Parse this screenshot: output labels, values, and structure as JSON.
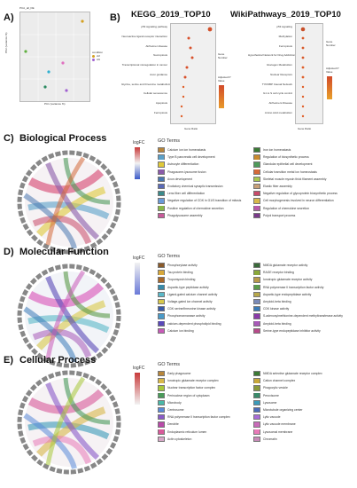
{
  "panels": {
    "A": {
      "letter": "A)",
      "title": "PCA_all_DE",
      "xlabel": "PC1 (variance %)",
      "ylabel": "PC2 (variance %)",
      "legend_title": "condition",
      "legend_items": [
        "ctrl",
        "Aß"
      ]
    },
    "B": {
      "letter": "B)",
      "kegg_title": "KEGG_2019_TOP10",
      "wiki_title": "WikiPathways_2019_TOP10",
      "kegg_terms": [
        "p53 signaling pathway",
        "Neuroactive ligand-receptor interaction",
        "Alzheimer disease",
        "Necroptosis",
        "Transcriptional misregulation in cancer",
        "Axon guidance",
        "Glycine, serine and threonine metabolism",
        "Cellular senescence",
        "Apoptosis",
        "Ferroptosis"
      ],
      "wiki_terms": [
        "p53 signaling",
        "Methylation",
        "Ferroptosis",
        "Hypothetical Network for Drug Addiction",
        "Glucagon Metabolism",
        "Nuclear Receptors",
        "TYROBP Causal Network",
        "G1 to S cell cycle control",
        "Alzheimers Disease",
        "Amino Acid metabolism"
      ],
      "x_axis": "Gene Ratio",
      "size_legend": "Gene Number",
      "color_legend": "Adjusted P Value"
    },
    "C": {
      "letter": "C)",
      "title": "Biological Process",
      "logfc": "logFC",
      "legend_title": "GO Terms",
      "terms": [
        "Calcium ion ion homeostasis",
        "Iron ion homeostasis",
        "Type B pancreatic cell development",
        "Regulation of biosynthetic process",
        "Astrocyte differentiation",
        "Glandular epithelial cell development",
        "Phagosome-lysosome fusion",
        "Cellular transition metal ion homeostasis",
        "Axon development",
        "Skeletal muscle myosin thick filament assembly",
        "Excitatory chemical synaptic transmission",
        "Elastic fiber assembly",
        "Lens fiber cell differentiation",
        "Negative regulation of glycoprotein biosynthetic process",
        "Negative regulation of CDK in G1/S transition of mitosis",
        "Cell morphogenesis involved in neuron differentiation",
        "Positive regulation of chemokine secretion",
        "Regulation of chemokine secretion",
        "Phagolysosome assembly",
        "Polyol transport process"
      ],
      "colors": [
        "#b8863a",
        "#3a7a34",
        "#5aa0c8",
        "#c98a2d",
        "#e0c93a",
        "#4e9a5a",
        "#8a5aa8",
        "#d46a3a",
        "#4a78b0",
        "#a8c850",
        "#5a6ab8",
        "#c8a078",
        "#3a8a8a",
        "#c84a6a",
        "#6a9ad8",
        "#d8b84a",
        "#8ab84a",
        "#b85aa8",
        "#c85a9a",
        "#7a3a8a"
      ]
    },
    "D": {
      "letter": "D)",
      "title": "Molecular Function",
      "logfc": "logFC",
      "legend_title": "GO Terms",
      "terms": [
        "Phosphorylase activity",
        "NMDA glutamate receptor activity",
        "Tau protein binding",
        "RAGE receptor binding",
        "Tropomyosin binding",
        "Ionotropic glutamate receptor activity",
        "Aspartic-type peptidase activity",
        "RNA polymerase II transcription factor activity",
        "Ligand-gated calcium channel activity",
        "Aspartic-type endopeptidase activity",
        "Voltage-gated ion channel activity",
        "Amyloid-beta binding",
        "CDK serine/threonine kinase activity",
        "CDK kinase activity",
        "Phosphomannanase activity",
        "S-adenosylmethionine-dependent methyltransferase activity",
        "calcium-dependent phospholipid binding",
        "Amyloid-beta binding",
        "Calcium ion binding",
        "Serine-type endopeptidase inhibitor activity"
      ],
      "colors": [
        "#8a5a2a",
        "#3a6a3a",
        "#d8a83a",
        "#8aa83a",
        "#a8682a",
        "#b89a4a",
        "#3a8aa8",
        "#5a9a4a",
        "#5ab8c8",
        "#b8a84a",
        "#d8c84a",
        "#7a8ab8",
        "#3a5aa8",
        "#3a7ab8",
        "#4a9ac8",
        "#8a3aa8",
        "#5a4ab8",
        "#a85ab8",
        "#c85ab8",
        "#b84a8a"
      ]
    },
    "E": {
      "letter": "E)",
      "title": "Cellular Process",
      "logfc": "logFC",
      "legend_title": "GO Terms",
      "terms": [
        "Early phagosome",
        "NMDA selective glutamate receptor complex",
        "Ionotropic glutamate receptor complex",
        "Cation channel complex",
        "Nuclear transcription factor complex",
        "Phagocytic vesicle",
        "Perinuclear region of cytoplasm",
        "Peroxisome",
        "Microbody",
        "Lysosome",
        "Centrosome",
        "Microtubule organizing center",
        "RNA polymerase II transcription factor complex",
        "Lytic vacuole",
        "Dendrite",
        "Lytic vacuole membrane",
        "Endoplasmic reticulum lumen",
        "Lysosomal membrane",
        "Actin cytoskeleton",
        "Chromatin"
      ],
      "colors": [
        "#b8863a",
        "#3a7a34",
        "#d8b84a",
        "#c8a83a",
        "#a8c83a",
        "#8a9a3a",
        "#4a9a5a",
        "#3a8a6a",
        "#4ab8a8",
        "#3a9ab8",
        "#5a8ad8",
        "#4a6ab8",
        "#8a5ac8",
        "#a86ad8",
        "#b84aa8",
        "#c86ab8",
        "#d85a9a",
        "#e87ab8",
        "#d8a8c8",
        "#c88ab8"
      ]
    }
  }
}
